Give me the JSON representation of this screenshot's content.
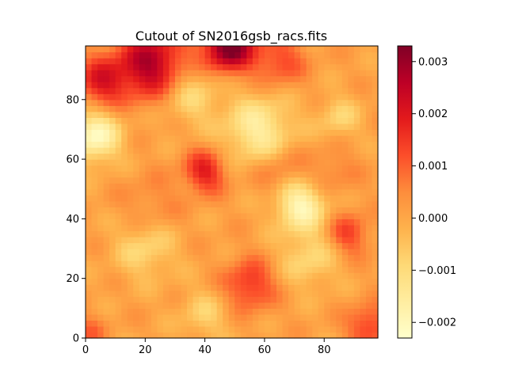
{
  "chart_data": {
    "type": "heatmap",
    "title": "Cutout of SN2016gsb_racs.fits",
    "xlabel": "",
    "ylabel": "",
    "xlim": [
      0,
      98
    ],
    "ylim": [
      0,
      98
    ],
    "origin": "lower",
    "x_ticks": [
      0,
      20,
      40,
      60,
      80
    ],
    "y_ticks": [
      0,
      20,
      40,
      60,
      80
    ],
    "x_tick_labels": [
      "0",
      "20",
      "40",
      "60",
      "80"
    ],
    "y_tick_labels": [
      "0",
      "20",
      "40",
      "60",
      "80"
    ],
    "colormap": "YlOrRd",
    "colormap_stops": [
      "#ffffcc",
      "#ffeda0",
      "#fed976",
      "#feb24c",
      "#fd8d3c",
      "#fc4e2a",
      "#e31a1c",
      "#bd0026",
      "#800026"
    ],
    "vmin": -0.0023,
    "vmax": 0.0033,
    "colorbar": {
      "ticks": [
        -0.002,
        -0.001,
        0.0,
        0.001,
        0.002,
        0.003
      ],
      "tick_labels": [
        "−0.002",
        "−0.001",
        "0.000",
        "0.001",
        "0.002",
        "0.003"
      ]
    },
    "grid": false,
    "features": [
      {
        "x": 48,
        "y": 98,
        "value": 0.0034,
        "sigma": 6
      },
      {
        "x": 22,
        "y": 92,
        "value": 0.0027,
        "sigma": 8
      },
      {
        "x": 5,
        "y": 86,
        "value": 0.0018,
        "sigma": 6
      },
      {
        "x": 65,
        "y": 93,
        "value": 0.0012,
        "sigma": 6
      },
      {
        "x": 40,
        "y": 56,
        "value": 0.0018,
        "sigma": 5
      },
      {
        "x": 65,
        "y": 56,
        "value": 0.0008,
        "sigma": 6
      },
      {
        "x": 82,
        "y": 56,
        "value": 0.0006,
        "sigma": 6
      },
      {
        "x": 88,
        "y": 35,
        "value": 0.0013,
        "sigma": 5
      },
      {
        "x": 55,
        "y": 18,
        "value": 0.0015,
        "sigma": 6
      },
      {
        "x": 95,
        "y": 4,
        "value": 0.0014,
        "sigma": 5
      },
      {
        "x": 1,
        "y": 2,
        "value": 0.0008,
        "sigma": 4
      },
      {
        "x": 22,
        "y": 45,
        "value": 0.0005,
        "sigma": 7
      },
      {
        "x": 3,
        "y": 68,
        "value": -0.0022,
        "sigma": 6
      },
      {
        "x": 58,
        "y": 70,
        "value": -0.0017,
        "sigma": 8
      },
      {
        "x": 72,
        "y": 45,
        "value": -0.0021,
        "sigma": 6
      },
      {
        "x": 20,
        "y": 30,
        "value": -0.001,
        "sigma": 7
      },
      {
        "x": 75,
        "y": 27,
        "value": -0.001,
        "sigma": 7
      },
      {
        "x": 35,
        "y": 82,
        "value": -0.0011,
        "sigma": 7
      },
      {
        "x": 85,
        "y": 74,
        "value": -0.0009,
        "sigma": 5
      },
      {
        "x": 40,
        "y": 8,
        "value": -0.0008,
        "sigma": 6
      }
    ]
  }
}
